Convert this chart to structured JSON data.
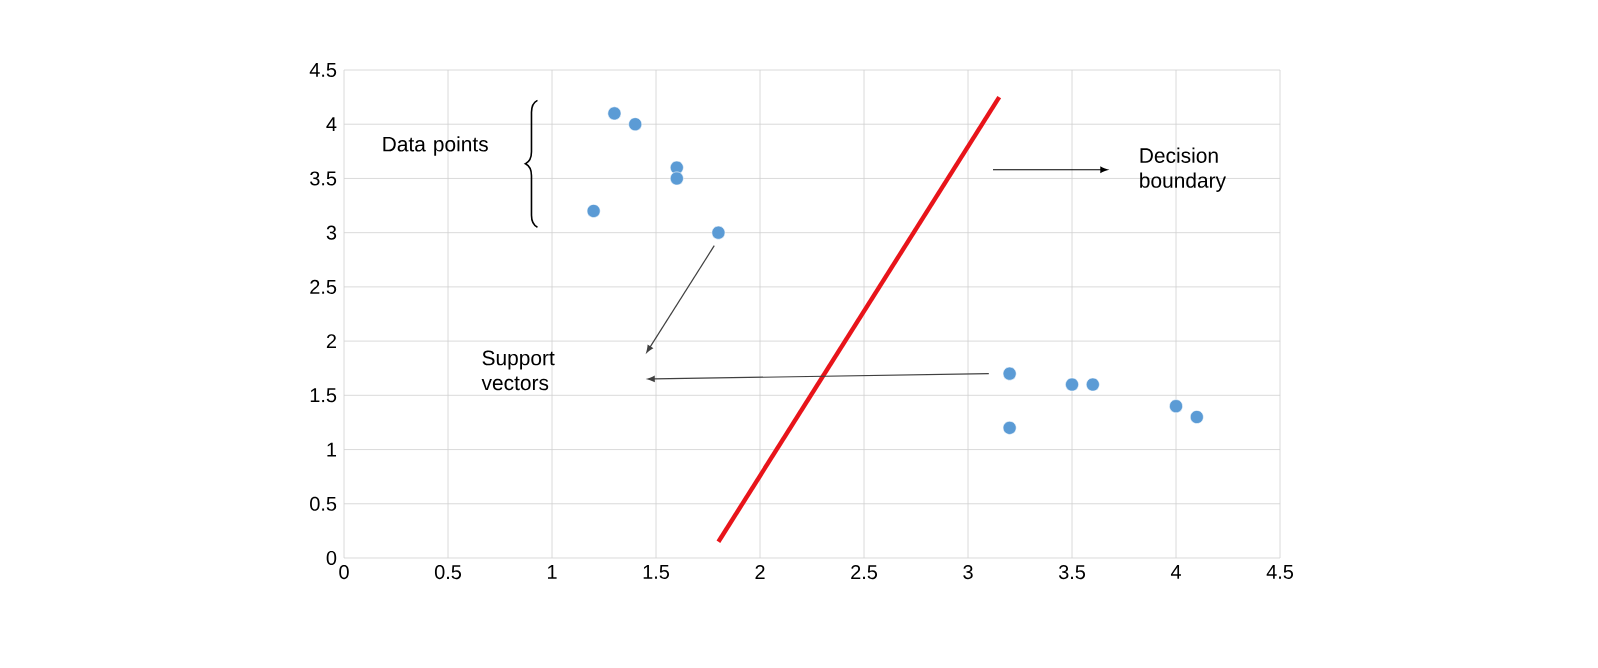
{
  "chart_data": {
    "type": "scatter",
    "xlim": [
      0,
      4.5
    ],
    "ylim": [
      0,
      4.5
    ],
    "xticks": [
      0,
      0.5,
      1,
      1.5,
      2,
      2.5,
      3,
      3.5,
      4,
      4.5
    ],
    "yticks": [
      0,
      0.5,
      1,
      1.5,
      2,
      2.5,
      3,
      3.5,
      4,
      4.5
    ],
    "grid": true,
    "marker": "circle",
    "series": [
      {
        "color": "#5b9bd5",
        "x": [
          1.3,
          1.4,
          1.6,
          1.6,
          1.2,
          1.8,
          3.2,
          3.2,
          3.5,
          3.6,
          4.0,
          4.1
        ],
        "values": [
          4.1,
          4.0,
          3.6,
          3.5,
          3.2,
          3.0,
          1.7,
          1.2,
          1.6,
          1.6,
          1.4,
          1.3
        ]
      },
      {
        "type": "line",
        "marker": "none",
        "color": "#e8141a",
        "x": [
          1.8,
          3.15
        ],
        "values": [
          0.15,
          4.25
        ]
      }
    ],
    "annotations": [
      "Data points",
      "Decision boundary",
      "Support vectors"
    ]
  }
}
